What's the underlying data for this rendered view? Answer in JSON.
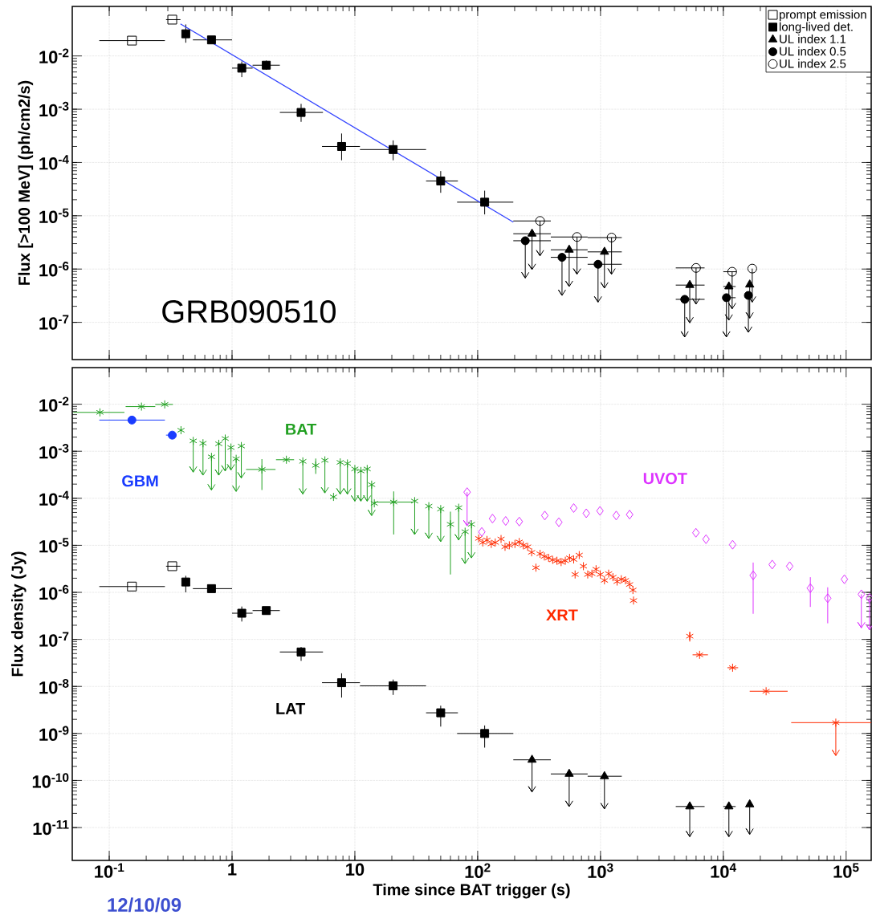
{
  "chart_data": [
    {
      "type": "scatter",
      "ylabel": "Flux [>100 MeV] (ph/cm2/s)",
      "annotations": [
        "GRB090510"
      ],
      "log": "xy",
      "grid": true,
      "legend": "top right",
      "tick_labels": "y",
      "xlim": [
        0.05,
        160000
      ],
      "ylim": [
        2e-08,
        0.085
      ],
      "xticks": [
        {
          "value": 0.1,
          "label": null
        },
        {
          "value": 1,
          "label": null
        },
        {
          "value": 10,
          "label": null
        },
        {
          "value": 100,
          "label": null
        },
        {
          "value": 1000,
          "label": null
        },
        {
          "value": 10000,
          "label": null
        },
        {
          "value": 100000,
          "label": null
        }
      ],
      "yticks": [
        {
          "value": 1e-07,
          "label": "10$^{-7}$"
        },
        {
          "value": 1e-06,
          "label": "10$^{-6}$"
        },
        {
          "value": 1e-05,
          "label": "10$^{-5}$"
        },
        {
          "value": 0.0001,
          "label": "10$^{-4}$"
        },
        {
          "value": 0.001,
          "label": "10$^{-3}$"
        },
        {
          "value": 0.01,
          "label": "10$^{-2}$"
        }
      ],
      "series": [
        {
          "name": "prompt emission",
          "color": "#000000",
          "marker": "square_open",
          "x": [
            0.153,
            0.326
          ],
          "values": [
            0.0194,
            0.048
          ],
          "xerrors": [
            [
              0.083,
              0.284
            ],
            [
              0.29,
              0.38
            ]
          ]
        },
        {
          "name": "long-lived det.",
          "color": "#000000",
          "marker": "square",
          "x": [
            0.42,
            0.68,
            1.2,
            1.9,
            3.65,
            7.8,
            20.5,
            50,
            114
          ],
          "values": [
            0.026,
            0.02,
            0.0059,
            0.0067,
            0.00087,
            0.0002,
            0.000175,
            4.5e-05,
            1.8e-05
          ],
          "errors": [
            [
              0.0177,
              0.039
            ],
            null,
            [
              0.004,
              0.0079
            ],
            [
              0.0055,
              0.0082
            ],
            [
              0.00058,
              0.00126
            ],
            [
              0.00011,
              0.00035
            ],
            [
              0.00011,
              0.00026
            ],
            [
              2.7e-05,
              6.9e-05
            ],
            [
              1.06e-05,
              2.96e-05
            ]
          ],
          "xerrors": [
            null,
            [
              0.48,
              1.0
            ],
            [
              1.0,
              1.47
            ],
            [
              1.47,
              2.45
            ],
            [
              2.45,
              5.5
            ],
            [
              5.4,
              11
            ],
            [
              11,
              38
            ],
            [
              38,
              69
            ],
            [
              68,
              195
            ]
          ]
        },
        {
          "name": "UL index 1.1",
          "color": "#000000",
          "marker": "triangle",
          "x": [
            277,
            556,
            1077,
            5330,
            11100,
            16400
          ],
          "values": [
            4.6e-06,
            2.3e-06,
            2.1e-06,
            5e-07,
            4.7e-07,
            5.1e-07
          ],
          "errors": [
            [
              9.8e-07,
              4.6e-06
            ],
            [
              4.7e-07,
              2.3e-06
            ],
            [
              4.4e-07,
              2.1e-06
            ],
            [
              9.8e-08,
              5e-07
            ],
            [
              1.1e-07,
              4.7e-07
            ],
            [
              1.2e-07,
              5.1e-07
            ]
          ],
          "xerrors": [
            [
              195,
              394
            ],
            [
              394,
              786
            ],
            [
              786,
              1490
            ],
            [
              4100,
              7040
            ],
            [
              10000,
              12600
            ],
            null
          ]
        },
        {
          "name": "UL index 0.5",
          "color": "#000000",
          "marker": "circle",
          "x": [
            244,
            486,
            955,
            4850,
            10600,
            16000
          ],
          "values": [
            3.4e-06,
            1.66e-06,
            1.23e-06,
            2.7e-07,
            2.9e-07,
            3.2e-07
          ],
          "errors": [
            [
              6.8e-07,
              3.4e-06
            ],
            [
              3.2e-07,
              1.66e-06
            ],
            [
              2.4e-07,
              1.23e-06
            ],
            [
              5.3e-08,
              2.7e-07
            ],
            [
              5.3e-08,
              2.9e-07
            ],
            [
              6.5e-08,
              3.2e-07
            ]
          ],
          "xerrors": [
            [
              195,
              394
            ],
            [
              394,
              786
            ],
            [
              786,
              1490
            ],
            [
              4100,
              7040
            ],
            [
              10000,
              12600
            ],
            null
          ]
        },
        {
          "name": "UL index 2.5",
          "color": "#000000",
          "marker": "circle_open",
          "x": [
            322,
            644,
            1230,
            6000,
            11800,
            17200
          ],
          "values": [
            8e-06,
            4e-06,
            3.9e-06,
            1.05e-06,
            8.9e-07,
            1.02e-06
          ],
          "errors": [
            [
              1.77e-06,
              8e-06
            ],
            [
              8e-07,
              4e-06
            ],
            [
              8e-07,
              3.9e-06
            ],
            [
              2.2e-07,
              1.05e-06
            ],
            [
              1.8e-07,
              8.9e-07
            ],
            [
              2.4e-07,
              1.02e-06
            ]
          ],
          "xerrors": [
            [
              195,
              394
            ],
            [
              394,
              786
            ],
            [
              786,
              1490
            ],
            [
              4100,
              7040
            ],
            [
              10000,
              12800
            ],
            null
          ]
        },
        {
          "type": "line",
          "color": "#3344ff",
          "marker": "none",
          "x": [
            0.38,
            195
          ],
          "values": [
            0.04,
            7.6e-06
          ]
        }
      ]
    },
    {
      "type": "scatter",
      "xlabel": "Time since BAT trigger (s)",
      "ylabel": "Flux density (Jy)",
      "annotations": [
        "12/10/09"
      ],
      "log": "xy",
      "grid": true,
      "xlim": [
        0.05,
        160000
      ],
      "ylim": [
        2e-12,
        0.06
      ],
      "xticks": [
        {
          "value": 0.1,
          "label": "10$^{-1}$"
        },
        1,
        10,
        {
          "value": 100,
          "label": "10$^{2}$"
        },
        {
          "value": 1000,
          "label": "10$^{3}$"
        },
        {
          "value": 10000,
          "label": "10$^{4}$"
        },
        {
          "value": 100000,
          "label": "10$^{5}$"
        }
      ],
      "yticks": [
        {
          "value": 1e-11,
          "label": "10$^{-11}$"
        },
        {
          "value": 1e-10,
          "label": "10$^{-10}$"
        },
        {
          "value": 1e-09,
          "label": "10$^{-9}$"
        },
        {
          "value": 1e-08,
          "label": "10$^{-8}$"
        },
        {
          "value": 1e-07,
          "label": "10$^{-7}$"
        },
        {
          "value": 1e-06,
          "label": "10$^{-6}$"
        },
        {
          "value": 1e-05,
          "label": "10$^{-5}$"
        },
        {
          "value": 0.0001,
          "label": "10$^{-4}$"
        },
        {
          "value": 0.001,
          "label": "10$^{-3}$"
        },
        {
          "value": 0.01,
          "label": "10$^{-2}$"
        }
      ],
      "series": [
        {
          "name": "GBM",
          "color": "#1a3cff",
          "marker": "circle",
          "x": [
            0.153,
            0.326
          ],
          "values": [
            0.0046,
            0.0022
          ],
          "xerrors": [
            [
              0.083,
              0.284
            ],
            [
              0.29,
              0.35
            ]
          ]
        },
        {
          "name": "BAT",
          "color": "#22a022",
          "marker": "cross",
          "x": [
            0.084,
            0.183,
            0.283,
            0.384,
            0.483,
            0.58,
            0.68,
            0.78,
            0.88,
            0.98,
            1.08,
            1.19,
            1.75,
            2.77,
            3.77,
            4.8,
            5.7,
            6.7,
            7.6,
            8.7,
            10,
            11.2,
            12.6,
            13.7,
            14.4,
            20.7,
            30.7,
            40,
            50,
            60,
            70,
            79,
            89
          ],
          "values": [
            0.0067,
            0.0089,
            0.0099,
            0.0028,
            0.00166,
            0.00148,
            0.00076,
            0.00144,
            0.00186,
            0.0012,
            0.00069,
            0.00129,
            0.00041,
            0.00066,
            0.00061,
            0.0005,
            0.00064,
            0.000107,
            0.00058,
            0.00055,
            0.00042,
            0.00038,
            0.00042,
            0.000195,
            7.8e-05,
            8.3e-05,
            8.7e-05,
            6.8e-05,
            5.9e-05,
            2.8e-05,
            6.3e-05,
            1.95e-05,
            2.8e-05
          ],
          "errors": [
            null,
            null,
            null,
            null,
            [
              0.00036,
              0.00166
            ],
            [
              0.00031,
              0.00148
            ],
            [
              0.00015,
              0.00076
            ],
            [
              0.00031,
              0.00144
            ],
            [
              0.00038,
              0.00186
            ],
            [
              0.0004,
              0.0012
            ],
            [
              0.00014,
              0.00069
            ],
            [
              0.00027,
              0.00129
            ],
            [
              0.00015,
              0.00068
            ],
            null,
            [
              0.000123,
              0.00061
            ],
            [
              0.00033,
              0.0007
            ],
            [
              0.00013,
              0.00064
            ],
            null,
            [
              0.000123,
              0.00058
            ],
            [
              0.000123,
              0.00055
            ],
            [
              8.7e-05,
              0.00042
            ],
            [
              8.7e-05,
              0.00038
            ],
            [
              8.7e-05,
              0.00042
            ],
            [
              4.3e-05,
              0.000195
            ],
            null,
            [
              1.7e-05,
              0.00014
            ],
            [
              1.7e-05,
              8.7e-05
            ],
            [
              1.4e-05,
              6.8e-05
            ],
            [
              1.2e-05,
              5.9e-05
            ],
            [
              2.4e-06,
              5.2e-05
            ],
            [
              1.3e-05,
              6.3e-05
            ],
            [
              4.1e-06,
              1.95e-05
            ],
            [
              5.4e-06,
              2.8e-05
            ]
          ],
          "xerrors": [
            [
              0.051,
              0.133
            ],
            [
              0.136,
              0.237
            ],
            [
              0.237,
              0.33
            ],
            null,
            null,
            null,
            null,
            null,
            null,
            null,
            null,
            null,
            [
              1.3,
              2.26
            ],
            [
              2.28,
              3.2
            ],
            null,
            null,
            null,
            null,
            null,
            null,
            null,
            null,
            null,
            null,
            null,
            [
              14.4,
              29.8
            ],
            null,
            null,
            null,
            null,
            null,
            null,
            null
          ]
        },
        {
          "color": "#000000",
          "marker": "square_open",
          "x": [
            0.153,
            0.326
          ],
          "values": [
            1.33e-06,
            3.6e-06
          ],
          "xerrors": [
            [
              0.083,
              0.284
            ],
            [
              0.29,
              0.38
            ]
          ]
        },
        {
          "name": "LAT",
          "color": "#000000",
          "marker": "square",
          "x": [
            0.42,
            0.68,
            1.2,
            1.9,
            3.65,
            7.8,
            20.5,
            50,
            114
          ],
          "values": [
            1.66e-06,
            1.2e-06,
            3.6e-07,
            4.1e-07,
            5.4e-08,
            1.2e-08,
            1.03e-08,
            2.75e-09,
            1e-09
          ],
          "errors": [
            [
              1e-06,
              2.25e-06
            ],
            null,
            [
              2.4e-07,
              5e-07
            ],
            null,
            [
              3.5e-08,
              6.9e-08
            ],
            [
              5.8e-09,
              1.9e-08
            ],
            [
              6.6e-09,
              1.4e-08
            ],
            [
              1.4e-09,
              3.9e-09
            ],
            [
              5e-10,
              1.48e-09
            ]
          ],
          "xerrors": [
            null,
            [
              0.48,
              1.0
            ],
            [
              1.0,
              1.47
            ],
            [
              1.47,
              2.45
            ],
            [
              2.45,
              5.5
            ],
            [
              5.4,
              11
            ],
            [
              11,
              38
            ],
            [
              38,
              69
            ],
            [
              68,
              195
            ]
          ]
        },
        {
          "color": "#000000",
          "marker": "triangle",
          "x": [
            277,
            556,
            1077,
            5330,
            11100,
            16400
          ],
          "values": [
            2.75e-10,
            1.38e-10,
            1.23e-10,
            2.8e-11,
            2.8e-11,
            3.1e-11
          ],
          "errors": [
            [
              5.7e-11,
              2.75e-10
            ],
            [
              2.8e-11,
              1.38e-10
            ],
            [
              2.5e-11,
              1.23e-10
            ],
            [
              6.4e-12,
              2.8e-11
            ],
            [
              6.4e-12,
              2.8e-11
            ],
            [
              7.2e-12,
              3.1e-11
            ]
          ],
          "xerrors": [
            [
              195,
              394
            ],
            [
              394,
              786
            ],
            [
              786,
              1490
            ],
            [
              4100,
              7040
            ],
            [
              10000,
              12600
            ],
            null
          ]
        },
        {
          "name": "XRT",
          "color": "#ff2a00",
          "marker": "cross",
          "x": [
            102,
            110,
            119,
            129,
            139,
            155,
            167,
            181,
            201,
            218,
            235,
            255,
            275,
            298,
            322,
            349,
            378,
            408,
            442,
            478,
            517,
            560,
            605,
            621,
            671,
            726,
            787,
            851,
            920,
            995,
            1077,
            1165,
            1262,
            1365,
            1476,
            1596,
            1726,
            1837,
            1857,
            5330,
            6410,
            11900,
            22300,
            82400
          ],
          "values": [
            1.4e-05,
            1.15e-05,
            1.3e-05,
            1.07e-05,
            1.15e-05,
            1.36e-05,
            9.3e-06,
            1e-05,
            1.07e-05,
            1.18e-05,
            1e-05,
            9.3e-06,
            7.1e-06,
            3.35e-06,
            6.6e-06,
            5.8e-06,
            5.4e-06,
            4.9e-06,
            4.7e-06,
            4.4e-06,
            4.7e-06,
            5.4e-06,
            5e-06,
            2.4e-06,
            6.2e-06,
            3.6e-06,
            2.4e-06,
            2.5e-06,
            3.1e-06,
            2.4e-06,
            1.8e-06,
            2.5e-06,
            2.1e-06,
            1.7e-06,
            1.9e-06,
            1.8e-06,
            1.47e-06,
            1.12e-06,
            6.7e-07,
            1.17e-07,
            4.7e-08,
            2.5e-08,
            7.9e-09,
            1.7e-09
          ],
          "errors": [
            null,
            null,
            null,
            null,
            null,
            null,
            null,
            null,
            null,
            null,
            null,
            null,
            null,
            null,
            null,
            null,
            null,
            null,
            null,
            null,
            null,
            null,
            null,
            null,
            null,
            null,
            null,
            null,
            null,
            null,
            null,
            null,
            null,
            null,
            null,
            null,
            null,
            null,
            null,
            [
              9e-08,
              1.45e-07
            ],
            null,
            null,
            null,
            [
              3.4e-10,
              1.7e-09
            ]
          ],
          "xerrors": [
            null,
            null,
            null,
            null,
            null,
            null,
            null,
            null,
            null,
            null,
            null,
            null,
            null,
            null,
            null,
            null,
            null,
            null,
            null,
            null,
            null,
            null,
            null,
            null,
            null,
            null,
            null,
            null,
            null,
            null,
            null,
            null,
            null,
            null,
            null,
            null,
            null,
            null,
            null,
            null,
            [
              5620,
              7500
            ],
            [
              10800,
              13200
            ],
            [
              16400,
              33400
            ],
            [
              35700,
              160000
            ]
          ]
        },
        {
          "name": "UVOT",
          "color": "#dd33ff",
          "marker": "diamond_open",
          "x": [
            82,
            108,
            132,
            169,
            218,
            352,
            458,
            605,
            766,
            990,
            1343,
            1726,
            5980,
            7230,
            11900,
            17500,
            25000,
            34700,
            51100,
            70800,
            96800,
            133000,
            155000
          ],
          "values": [
            0.000135,
            1.93e-05,
            3.7e-05,
            3.3e-05,
            3.2e-05,
            4.3e-05,
            3.1e-05,
            6.2e-05,
            4.8e-05,
            5.4e-05,
            4.3e-05,
            4.5e-05,
            1.85e-05,
            1.35e-05,
            1.03e-05,
            2.3e-06,
            3.9e-06,
            3.6e-06,
            1.23e-06,
            7.5e-07,
            1.9e-06,
            9.1e-07,
            7.6e-07
          ],
          "errors": [
            [
              2.6e-05,
              0.000135
            ],
            null,
            null,
            null,
            null,
            null,
            null,
            null,
            null,
            null,
            null,
            null,
            null,
            null,
            null,
            [
              3.5e-07,
              4.3e-06
            ],
            null,
            null,
            [
              4.9e-07,
              2.1e-06
            ],
            [
              2.2e-07,
              1.28e-06
            ],
            null,
            [
              1.76e-07,
              9.1e-07
            ],
            [
              1.6e-07,
              7.6e-07
            ]
          ]
        }
      ]
    }
  ]
}
